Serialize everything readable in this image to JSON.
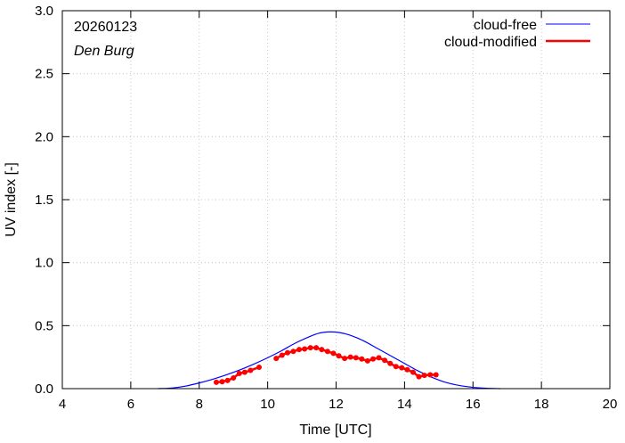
{
  "chart_data": {
    "type": "line",
    "xlabel": "Time  [UTC]",
    "ylabel": "UV index  [-]",
    "xlim": [
      4,
      20
    ],
    "ylim": [
      0.0,
      3.0
    ],
    "x_ticks": [
      "4",
      "6",
      "8",
      "10",
      "12",
      "14",
      "16",
      "18",
      "20"
    ],
    "y_ticks": [
      "0.0",
      "0.5",
      "1.0",
      "1.5",
      "2.0",
      "2.5",
      "3.0"
    ],
    "annotations": {
      "date": "20260123",
      "station": "Den Burg"
    },
    "legend_position": "top-right",
    "series": [
      {
        "name": "cloud-free",
        "color": "#0000ff",
        "marker": "none",
        "x": [
          6.8,
          7.2,
          7.6,
          8.0,
          8.4,
          8.8,
          9.2,
          9.6,
          10.0,
          10.4,
          10.8,
          11.2,
          11.5,
          11.8,
          12.1,
          12.4,
          12.8,
          13.2,
          13.6,
          14.0,
          14.4,
          14.8,
          15.2,
          15.6,
          16.0,
          16.4,
          16.8
        ],
        "y": [
          0.0,
          0.005,
          0.02,
          0.045,
          0.075,
          0.11,
          0.15,
          0.195,
          0.245,
          0.3,
          0.36,
          0.41,
          0.44,
          0.45,
          0.445,
          0.425,
          0.38,
          0.32,
          0.26,
          0.2,
          0.14,
          0.09,
          0.05,
          0.025,
          0.01,
          0.003,
          0.0
        ]
      },
      {
        "name": "cloud-modified",
        "color": "#ff0000",
        "marker": "dot",
        "segments": [
          {
            "x": [
              8.5,
              8.67,
              8.83,
              9.0,
              9.17,
              9.33,
              9.5,
              9.75
            ],
            "y": [
              0.05,
              0.055,
              0.065,
              0.085,
              0.12,
              0.13,
              0.145,
              0.17
            ]
          },
          {
            "x": [
              10.25,
              10.42,
              10.58,
              10.75,
              10.92,
              11.08,
              11.25,
              11.42,
              11.58,
              11.75,
              11.92,
              12.08,
              12.25,
              12.42,
              12.58,
              12.75,
              12.92,
              13.08,
              13.25,
              13.42,
              13.58,
              13.75,
              13.92,
              14.08,
              14.25,
              14.42,
              14.58,
              14.75,
              14.92
            ],
            "y": [
              0.24,
              0.265,
              0.285,
              0.295,
              0.31,
              0.315,
              0.325,
              0.325,
              0.31,
              0.295,
              0.28,
              0.26,
              0.24,
              0.25,
              0.245,
              0.235,
              0.22,
              0.235,
              0.245,
              0.225,
              0.2,
              0.175,
              0.165,
              0.15,
              0.13,
              0.095,
              0.105,
              0.11,
              0.11
            ]
          }
        ]
      }
    ]
  }
}
